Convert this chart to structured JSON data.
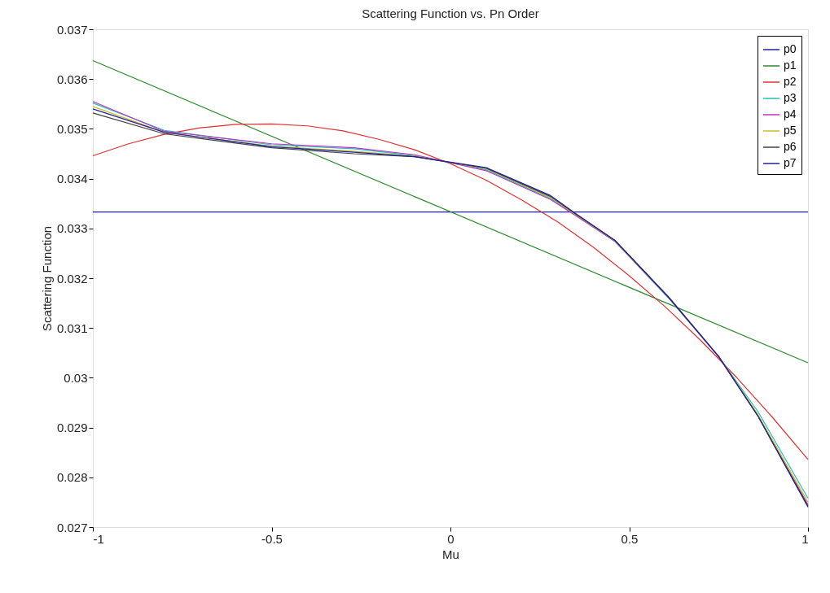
{
  "chart_data": {
    "type": "line",
    "title": "Scattering Function vs. Pn Order",
    "xlabel": "Mu",
    "ylabel": "Scattering Function",
    "xlim": [
      -1,
      1
    ],
    "xticks": [
      -1,
      -0.5,
      0,
      0.5,
      1
    ],
    "ylim": [
      0.027,
      0.037
    ],
    "yticks": [
      0.027,
      0.028,
      0.029,
      0.03,
      0.031,
      0.032,
      0.033,
      0.034,
      0.035,
      0.036,
      0.037
    ],
    "grid": false,
    "legend": "top right",
    "marker": "none",
    "line_style": "solid",
    "series": [
      {
        "name": "p0",
        "color": "#2020a0",
        "x": [
          -1,
          1
        ],
        "values": [
          0.03333,
          0.03333
        ]
      },
      {
        "name": "p1",
        "color": "#2a8a2a",
        "x": [
          -1,
          1
        ],
        "values": [
          0.03637,
          0.0303
        ]
      },
      {
        "name": "p2",
        "color": "#e03030",
        "x": [
          -1,
          -0.9,
          -0.8,
          -0.7,
          -0.6,
          -0.5,
          -0.4,
          -0.3,
          -0.2,
          -0.1,
          0,
          0.1,
          0.2,
          0.3,
          0.4,
          0.5,
          0.6,
          0.7,
          0.8,
          0.9,
          1
        ],
        "values": [
          0.03446,
          0.0347,
          0.03489,
          0.03502,
          0.03509,
          0.0351,
          0.03506,
          0.03496,
          0.03479,
          0.03458,
          0.0343,
          0.03397,
          0.03357,
          0.03313,
          0.03262,
          0.03205,
          0.03143,
          0.03075,
          0.03001,
          0.02921,
          0.02836
        ]
      },
      {
        "name": "p3",
        "color": "#20c0c0",
        "x": [
          -1,
          -0.8,
          -0.5,
          -0.27,
          -0.1,
          0.1,
          0.28,
          0.35,
          0.46,
          0.61,
          0.75,
          0.86,
          1
        ],
        "values": [
          0.03552,
          0.03497,
          0.03468,
          0.0346,
          0.03446,
          0.03418,
          0.0336,
          0.03327,
          0.03274,
          0.0316,
          0.03043,
          0.02932,
          0.02758
        ]
      },
      {
        "name": "p4",
        "color": "#c030c0",
        "x": [
          -1,
          -0.8,
          -0.5,
          -0.27,
          -0.1,
          0.1,
          0.28,
          0.35,
          0.46,
          0.61,
          0.75,
          0.86,
          1
        ],
        "values": [
          0.03555,
          0.03495,
          0.0347,
          0.03462,
          0.03448,
          0.03416,
          0.03358,
          0.03326,
          0.03274,
          0.03161,
          0.03042,
          0.02924,
          0.02745
        ]
      },
      {
        "name": "p5",
        "color": "#c8c020",
        "x": [
          -1,
          -0.8,
          -0.5,
          -0.27,
          -0.1,
          0.1,
          0.28,
          0.35,
          0.46,
          0.61,
          0.75,
          0.86,
          1
        ],
        "values": [
          0.03545,
          0.03493,
          0.03465,
          0.03455,
          0.03445,
          0.0342,
          0.03362,
          0.03328,
          0.03275,
          0.03162,
          0.03043,
          0.02926,
          0.0275
        ]
      },
      {
        "name": "p6",
        "color": "#404040",
        "x": [
          -1,
          -0.8,
          -0.5,
          -0.27,
          -0.1,
          0.1,
          0.28,
          0.35,
          0.46,
          0.61,
          0.75,
          0.86,
          1
        ],
        "values": [
          0.03532,
          0.0349,
          0.03462,
          0.0345,
          0.03444,
          0.03421,
          0.03364,
          0.03329,
          0.03276,
          0.03162,
          0.03043,
          0.02923,
          0.02742
        ]
      },
      {
        "name": "p7",
        "color": "#2020a0",
        "x": [
          -1,
          -0.8,
          -0.5,
          -0.27,
          -0.1,
          0.1,
          0.28,
          0.35,
          0.46,
          0.61,
          0.75,
          0.86,
          1
        ],
        "values": [
          0.0354,
          0.03493,
          0.03464,
          0.03453,
          0.03444,
          0.03422,
          0.03366,
          0.0333,
          0.03276,
          0.03162,
          0.03043,
          0.02923,
          0.0274
        ]
      }
    ]
  }
}
